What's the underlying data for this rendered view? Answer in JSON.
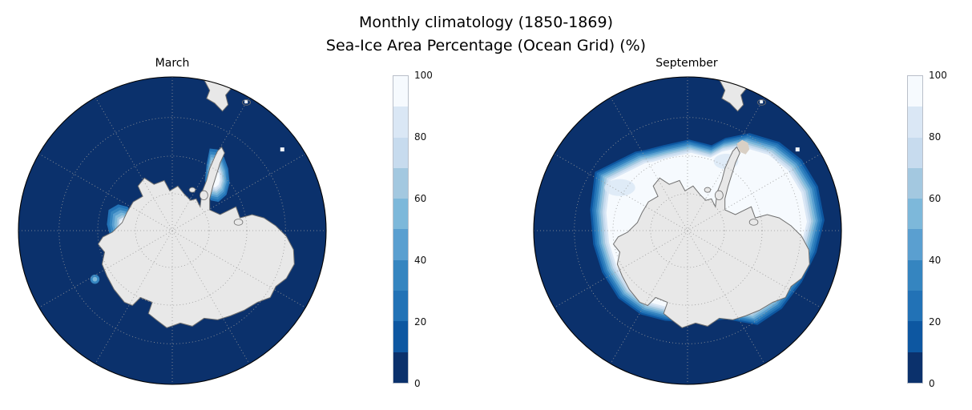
{
  "figure": {
    "title_line1": "Monthly climatology (1850-1869)",
    "title_line2": "Sea-Ice Area Percentage (Ocean Grid) (%)",
    "background": "#ffffff"
  },
  "panels": [
    {
      "id": "march",
      "title": "March"
    },
    {
      "id": "september",
      "title": "September"
    }
  ],
  "colorbar": {
    "min": 0,
    "max": 100,
    "ticks": [
      0,
      20,
      40,
      60,
      80,
      100
    ],
    "levels": [
      "#0b316c",
      "#0d57a1",
      "#2272b6",
      "#3585c0",
      "#5a9fd0",
      "#7db8da",
      "#a3c8e0",
      "#c7dbee",
      "#dae7f5",
      "#f6fafe"
    ]
  },
  "map": {
    "ocean_color": "#0b316c",
    "land_color": "#e8e8e8",
    "coast_color": "#6f6f6f",
    "graticule_color": "#9a9a9a",
    "boundary_color": "#000000",
    "ice_core_color": "#f6fafe",
    "bare_rock_patch_color": "#d9d0c5",
    "island_cell_color": "#f2f7fb"
  },
  "chart_data": [
    {
      "type": "heatmap",
      "chart_kind": "filled-contour south-polar map (Antarctica centered)",
      "title": "March",
      "suptitle": "Monthly climatology (1850-1869) — Sea-Ice Area Percentage (Ocean Grid) (%)",
      "units": "%",
      "value_range": [
        0,
        100
      ],
      "contour_levels": [
        0,
        10,
        20,
        30,
        40,
        50,
        60,
        70,
        80,
        90,
        100
      ],
      "colorbar_ticks": [
        0,
        20,
        40,
        60,
        80,
        100
      ],
      "colormap": "Blues reversed: 0% = dark navy ocean, 100% = white ice",
      "grid": "dotted graticule: meridians every 30 degrees, 3 latitude circles",
      "legend_position": "vertical colorbar on right of panel",
      "readings": [
        {
          "region": "open Southern Ocean (most of map)",
          "sea_ice_pct": 0
        },
        {
          "region": "western Weddell Sea, east of Antarctic Peninsula",
          "sea_ice_pct": "banded 10-100, core ~100"
        },
        {
          "region": "Amundsen/Bellingshausen coast patch (west of continent)",
          "sea_ice_pct": "banded 10-100, core ~100"
        },
        {
          "region": "small coastal spot further south on West Antarctic coast",
          "sea_ice_pct": "~30-50"
        }
      ]
    },
    {
      "type": "heatmap",
      "chart_kind": "filled-contour south-polar map (Antarctica centered)",
      "title": "September",
      "suptitle": "Monthly climatology (1850-1869) — Sea-Ice Area Percentage (Ocean Grid) (%)",
      "units": "%",
      "value_range": [
        0,
        100
      ],
      "contour_levels": [
        0,
        10,
        20,
        30,
        40,
        50,
        60,
        70,
        80,
        90,
        100
      ],
      "colorbar_ticks": [
        0,
        20,
        40,
        60,
        80,
        100
      ],
      "colormap": "Blues reversed: 0% = dark navy ocean, 100% = white ice",
      "grid": "dotted graticule: meridians every 30 degrees, 3 latitude circles",
      "legend_position": "vertical colorbar on right of panel",
      "readings": [
        {
          "region": "circumpolar pack ice surrounding whole continent",
          "sea_ice_pct": "~90-100 over broad interior"
        },
        {
          "region": "narrow stepped marginal ice zone at pack edge",
          "sea_ice_pct": "10-90 over thin band"
        },
        {
          "region": "pack extends farthest from coast in Weddell/eastern sector",
          "sea_ice_pct": "edge ~0/10 boundary far offshore"
        },
        {
          "region": "pack narrowest along bottom (Ross Sea) coast",
          "sea_ice_pct": "edge close to coastline"
        },
        {
          "region": "open ocean beyond ice edge",
          "sea_ice_pct": 0
        }
      ]
    }
  ]
}
